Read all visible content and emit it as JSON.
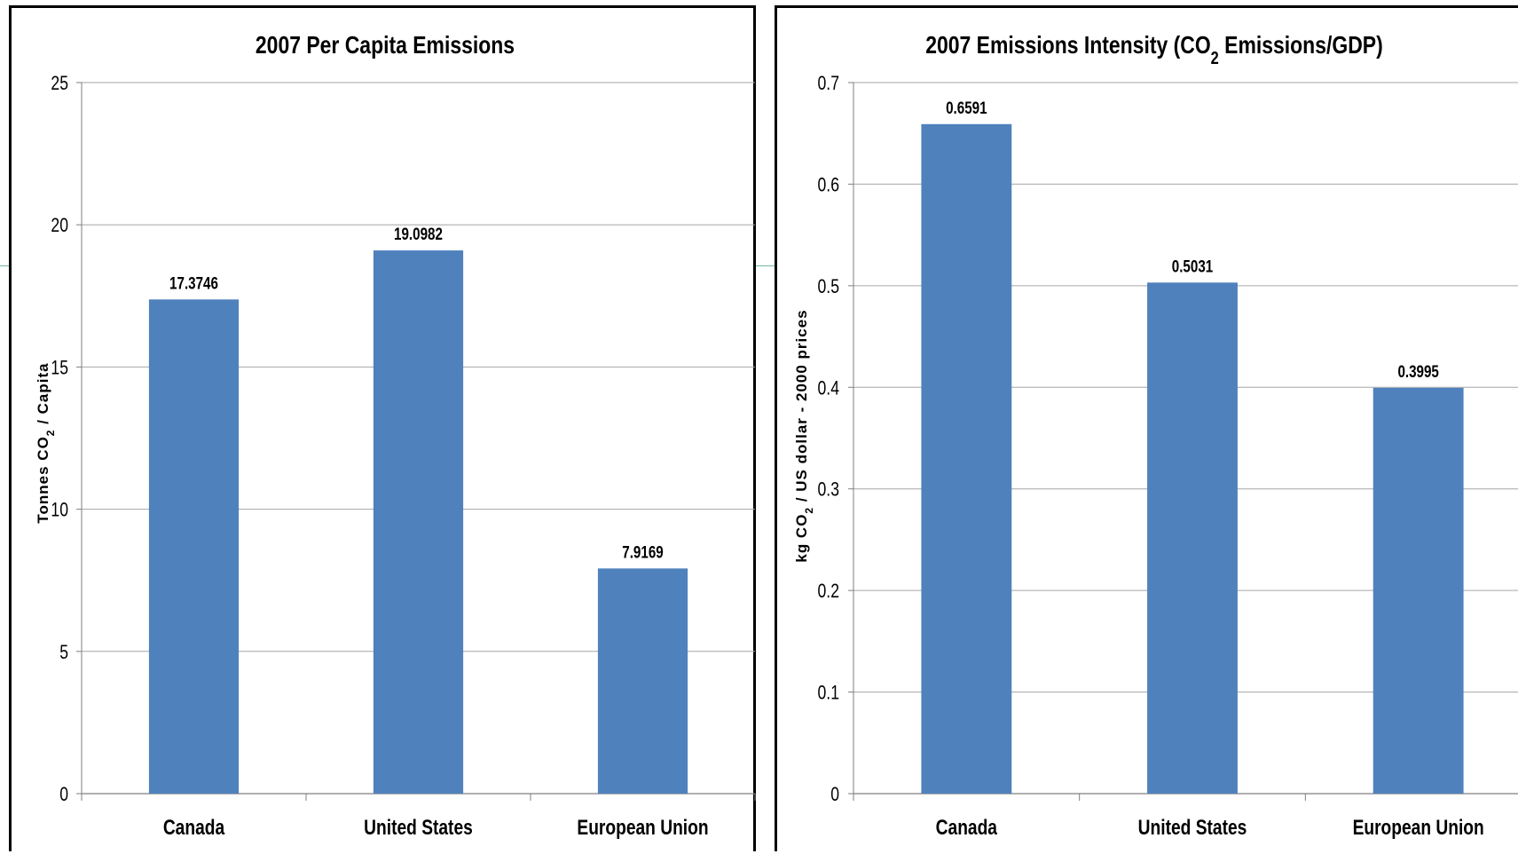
{
  "bar_color": "#4f81bd",
  "grid_color": "#a6a6a6",
  "chart_data": [
    {
      "type": "bar",
      "title": "2007 Per Capita Emissions",
      "ylabel_parts": [
        "Tonnes CO",
        "2",
        " / Capita"
      ],
      "categories": [
        "Canada",
        "United States",
        "European Union"
      ],
      "values": [
        17.3746,
        19.0982,
        7.9169
      ],
      "value_labels": [
        "17.3746",
        "19.0982",
        "7.9169"
      ],
      "ylim": [
        0,
        25
      ],
      "yticks": [
        0,
        5,
        10,
        15,
        20,
        25
      ],
      "ytick_labels": [
        "0",
        "5",
        "10",
        "15",
        "20",
        "25"
      ],
      "grid": true
    },
    {
      "type": "bar",
      "title_parts": [
        "2007 Emissions Intensity (CO",
        "2",
        " Emissions/GDP)"
      ],
      "ylabel_parts": [
        "kg CO",
        "2",
        " / US dollar  - 2000 prices"
      ],
      "categories": [
        "Canada",
        "United States",
        "European Union"
      ],
      "values": [
        0.6591,
        0.5031,
        0.3995
      ],
      "value_labels": [
        "0.6591",
        "0.5031",
        "0.3995"
      ],
      "ylim": [
        0,
        0.7
      ],
      "yticks": [
        0,
        0.1,
        0.2,
        0.3,
        0.4,
        0.5,
        0.6,
        0.7
      ],
      "ytick_labels": [
        "0",
        "0.1",
        "0.2",
        "0.3",
        "0.4",
        "0.5",
        "0.6",
        "0.7"
      ],
      "grid": true
    }
  ]
}
